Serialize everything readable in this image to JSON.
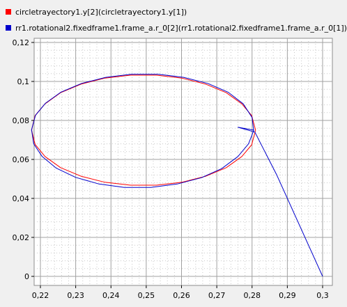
{
  "chart_data": {
    "type": "line",
    "title": "",
    "xlabel": "",
    "ylabel": "",
    "xlim": [
      0.22,
      0.3
    ],
    "ylim": [
      0,
      0.12
    ],
    "grid": true,
    "legend_position": "top-left",
    "x_ticks": [
      0.22,
      0.23,
      0.24,
      0.25,
      0.26,
      0.27,
      0.28,
      0.29,
      0.3
    ],
    "x_tick_labels": [
      "0,22",
      "0,23",
      "0,24",
      "0,25",
      "0,26",
      "0,27",
      "0,28",
      "0,29",
      "0,3"
    ],
    "y_ticks": [
      0,
      0.02,
      0.04,
      0.06,
      0.08,
      0.1,
      0.12
    ],
    "y_tick_labels": [
      "0",
      "0,02",
      "0,04",
      "0,06",
      "0,08",
      "0,1",
      "0,12"
    ],
    "series": [
      {
        "name": "circletrayectory1.y[2](circletrayectory1.y[1])",
        "color": "#ff0000",
        "points": [
          [
            0.281,
            0.075
          ],
          [
            0.2799,
            0.0825
          ],
          [
            0.2771,
            0.0885
          ],
          [
            0.2727,
            0.0942
          ],
          [
            0.2669,
            0.0986
          ],
          [
            0.2601,
            0.1017
          ],
          [
            0.2529,
            0.1032
          ],
          [
            0.2455,
            0.1032
          ],
          [
            0.2383,
            0.1017
          ],
          [
            0.2315,
            0.0986
          ],
          [
            0.2257,
            0.0942
          ],
          [
            0.2213,
            0.0885
          ],
          [
            0.2185,
            0.0825
          ],
          [
            0.2175,
            0.075
          ],
          [
            0.2185,
            0.0677
          ],
          [
            0.2213,
            0.0615
          ],
          [
            0.2257,
            0.0558
          ],
          [
            0.2315,
            0.0514
          ],
          [
            0.2383,
            0.0483
          ],
          [
            0.2455,
            0.0468
          ],
          [
            0.2529,
            0.0468
          ],
          [
            0.2601,
            0.0483
          ],
          [
            0.2669,
            0.0514
          ],
          [
            0.2727,
            0.0558
          ],
          [
            0.2771,
            0.0615
          ],
          [
            0.2799,
            0.0675
          ],
          [
            0.281,
            0.075
          ]
        ]
      },
      {
        "name": "rr1.rotational2.fixedframe1.frame_a.r_0[2](rr1.rotational2.fixedframe1.frame_a.r_0[1])",
        "color": "#0000cc",
        "points": [
          [
            0.3,
            0.0
          ],
          [
            0.287,
            0.052
          ],
          [
            0.2808,
            0.074
          ],
          [
            0.276,
            0.0765
          ],
          [
            0.2805,
            0.075
          ],
          [
            0.279,
            0.068
          ],
          [
            0.276,
            0.0615
          ],
          [
            0.2714,
            0.0553
          ],
          [
            0.2656,
            0.0506
          ],
          [
            0.2588,
            0.0474
          ],
          [
            0.2513,
            0.0456
          ],
          [
            0.2438,
            0.0456
          ],
          [
            0.2366,
            0.0474
          ],
          [
            0.23,
            0.0508
          ],
          [
            0.2245,
            0.0555
          ],
          [
            0.2205,
            0.0615
          ],
          [
            0.2181,
            0.068
          ],
          [
            0.2175,
            0.0752
          ],
          [
            0.2186,
            0.0826
          ],
          [
            0.2214,
            0.0888
          ],
          [
            0.2258,
            0.0945
          ],
          [
            0.2317,
            0.099
          ],
          [
            0.2385,
            0.1021
          ],
          [
            0.2458,
            0.1037
          ],
          [
            0.2533,
            0.1037
          ],
          [
            0.2606,
            0.1021
          ],
          [
            0.2674,
            0.099
          ],
          [
            0.2732,
            0.0945
          ],
          [
            0.2775,
            0.0885
          ],
          [
            0.28,
            0.0815
          ],
          [
            0.2805,
            0.074
          ]
        ]
      }
    ]
  }
}
